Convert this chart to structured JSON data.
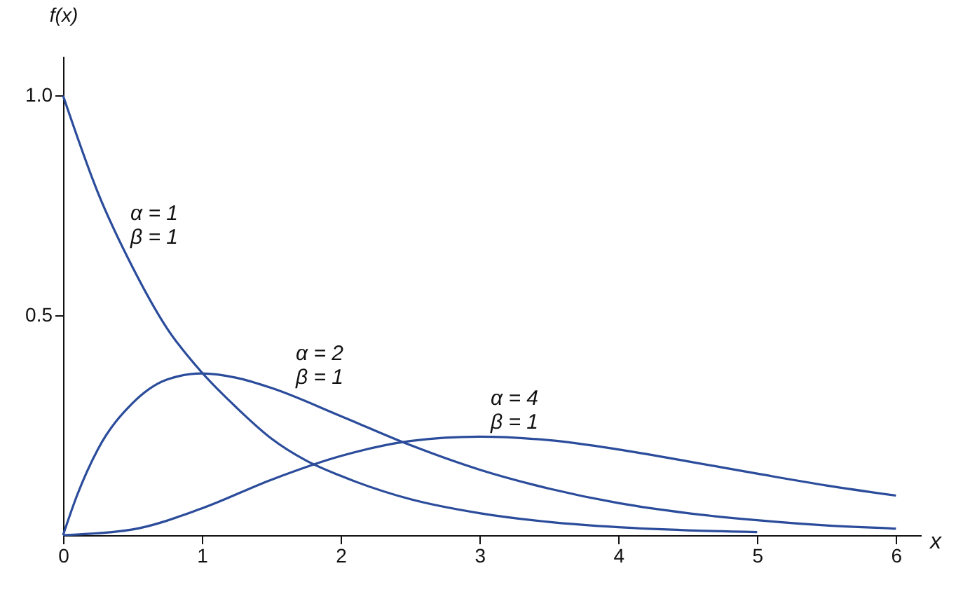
{
  "chart_data": {
    "type": "line",
    "xlabel": "x",
    "ylabel": "f(x)",
    "xlim": [
      0,
      6.18
    ],
    "ylim": [
      0,
      1.09
    ],
    "xticks": [
      0,
      1,
      2,
      3,
      4,
      5,
      6
    ],
    "yticks": [
      0.5,
      {
        "value": 1,
        "label": "1.0"
      }
    ],
    "grid": false,
    "marker": "none",
    "line_style": "solid",
    "series": [
      {
        "color": "#2b4c9b",
        "x": [
          0,
          0.25,
          0.5,
          0.75,
          1,
          1.25,
          1.5,
          1.75,
          2,
          2.5,
          3,
          3.5,
          4,
          4.5,
          5
        ],
        "values": [
          1,
          0.78,
          0.61,
          0.47,
          0.37,
          0.29,
          0.22,
          0.17,
          0.135,
          0.082,
          0.05,
          0.03,
          0.018,
          0.011,
          0.007
        ]
      },
      {
        "color": "#2b4c9b",
        "x": [
          0,
          0.1,
          0.25,
          0.5,
          0.75,
          1,
          1.25,
          1.5,
          2,
          2.5,
          3,
          3.5,
          4,
          4.5,
          5,
          5.5,
          6
        ],
        "values": [
          0,
          0.09,
          0.195,
          0.3,
          0.354,
          0.368,
          0.358,
          0.335,
          0.271,
          0.205,
          0.149,
          0.106,
          0.073,
          0.05,
          0.034,
          0.022,
          0.015
        ]
      },
      {
        "color": "#2b4c9b",
        "x": [
          0,
          0.5,
          1,
          1.5,
          2,
          2.5,
          3,
          3.5,
          4,
          4.5,
          5,
          5.5,
          6
        ],
        "values": [
          0,
          0.013,
          0.061,
          0.126,
          0.18,
          0.214,
          0.224,
          0.216,
          0.195,
          0.168,
          0.14,
          0.113,
          0.09
        ]
      }
    ],
    "annotations": [
      "α = 1\nβ = 1",
      "α = 2\nβ = 1",
      "α = 4\nβ = 1"
    ]
  }
}
